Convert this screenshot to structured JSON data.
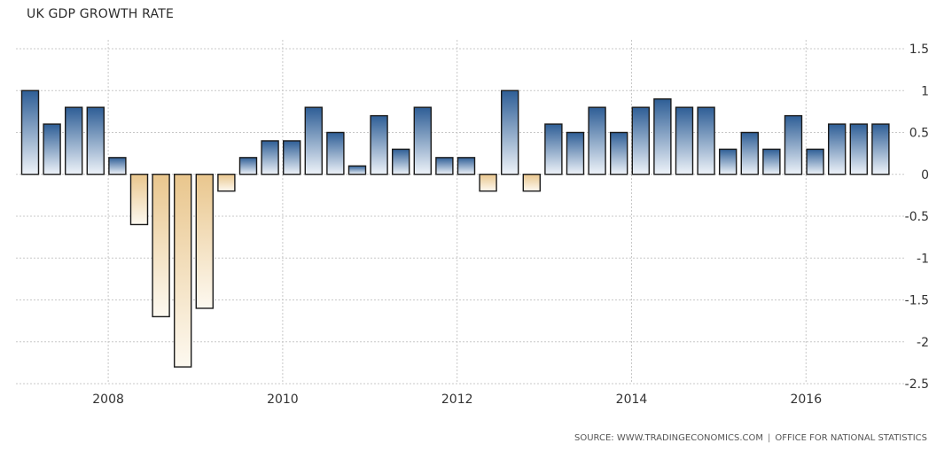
{
  "chart_data": {
    "type": "bar",
    "title": "UK GDP GROWTH RATE",
    "xlabel": "",
    "ylabel": "",
    "ylim": [
      -2.5,
      1.5
    ],
    "yticks": [
      1.5,
      1,
      0.5,
      0,
      -0.5,
      -1,
      -1.5,
      -2,
      -2.5
    ],
    "ytick_labels": [
      "1.5",
      "1",
      "0.5",
      "0",
      "-0.5",
      "-1",
      "-1.5",
      "-2",
      "-2.5"
    ],
    "x_tick_labels": [
      "2008",
      "2010",
      "2012",
      "2014",
      "2016"
    ],
    "x_range": [
      "2007-Q1",
      "2017-Q1"
    ],
    "grid": true,
    "positive_color": "#2e5e96",
    "negative_color": "#e8c48a",
    "categories": [
      "2007-Q1",
      "2007-Q2",
      "2007-Q3",
      "2007-Q4",
      "2008-Q1",
      "2008-Q2",
      "2008-Q3",
      "2008-Q4",
      "2009-Q1",
      "2009-Q2",
      "2009-Q3",
      "2009-Q4",
      "2010-Q1",
      "2010-Q2",
      "2010-Q3",
      "2010-Q4",
      "2011-Q1",
      "2011-Q2",
      "2011-Q3",
      "2011-Q4",
      "2012-Q1",
      "2012-Q2",
      "2012-Q3",
      "2012-Q4",
      "2013-Q1",
      "2013-Q2",
      "2013-Q3",
      "2013-Q4",
      "2014-Q1",
      "2014-Q2",
      "2014-Q3",
      "2014-Q4",
      "2015-Q1",
      "2015-Q2",
      "2015-Q3",
      "2015-Q4",
      "2016-Q1",
      "2016-Q2",
      "2016-Q3",
      "2016-Q4"
    ],
    "values": [
      1,
      0.6,
      0.8,
      0.8,
      0.2,
      -0.6,
      -1.7,
      -2.3,
      -1.6,
      -0.2,
      0.2,
      0.4,
      0.4,
      0.8,
      0.5,
      0.1,
      0.7,
      0.3,
      0.8,
      0.2,
      0.2,
      -0.2,
      1,
      -0.2,
      0.6,
      0.5,
      0.8,
      0.5,
      0.8,
      0.9,
      0.8,
      0.8,
      0.3,
      0.5,
      0.3,
      0.7,
      0.3,
      0.6,
      0.6,
      0.6
    ]
  },
  "source": {
    "text": "SOURCE: WWW.TRADINGECONOMICS.COM",
    "separator": "|",
    "office": "OFFICE FOR NATIONAL STATISTICS"
  }
}
